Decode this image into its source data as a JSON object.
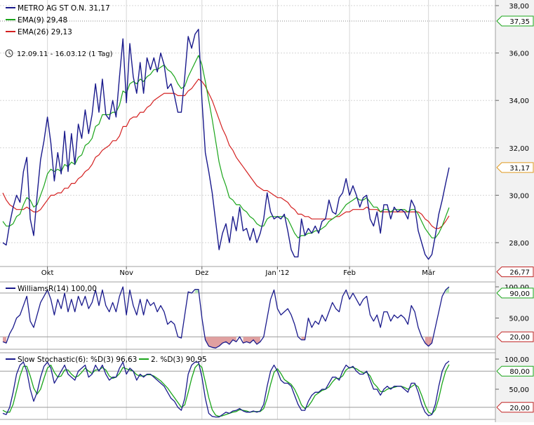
{
  "colors": {
    "price": "#1a1a8c",
    "ema9": "#1aa51a",
    "ema26": "#d42020",
    "stoch_d2": "#1aa51a",
    "grid": "#d6d6d6",
    "axis_bg": "#f2f2f2",
    "overbought_fill": "#b8e8b8",
    "oversold_fill": "#e0a0a0"
  },
  "x_labels": [
    "Okt",
    "Nov",
    "Dez",
    "Jan '12",
    "Feb",
    "Mär"
  ],
  "chart_data": [
    {
      "type": "line",
      "legend": {
        "price": "METRO AG ST O.N. 31,17",
        "ema9": "EMA(9) 29,48",
        "ema26": "EMA(26) 29,13"
      },
      "date_range": "12.09.11 - 16.03.12 (1 Tag)",
      "y_ticks": [
        "38,00",
        "36,00",
        "34,00",
        "32,00",
        "30,00",
        "28,00"
      ],
      "markers": [
        {
          "text": "37,35",
          "value": 37.35,
          "color": "#1aa51a"
        },
        {
          "text": "31,17",
          "value": 31.17,
          "color": "#e09a20"
        },
        {
          "text": "26,77",
          "value": 26.77,
          "color": "#c02020"
        }
      ],
      "ylim": [
        26.77,
        38.0
      ],
      "series": [
        {
          "values": [
            28.0,
            27.9,
            28.8,
            29.5,
            30.0,
            29.7,
            31.0,
            31.6,
            29.0,
            28.3,
            30.0,
            31.5,
            32.3,
            33.3,
            32.2,
            30.6,
            31.8,
            30.9,
            32.7,
            31.0,
            32.6,
            31.3,
            33.0,
            32.4,
            33.6,
            32.6,
            33.4,
            34.7,
            33.5,
            34.9,
            33.4,
            33.2,
            34.0,
            33.3,
            35.0,
            36.6,
            33.9,
            36.4,
            35.0,
            34.3,
            35.6,
            34.3,
            35.8,
            35.3,
            35.8,
            35.2,
            36.0,
            35.5,
            34.5,
            34.7,
            34.2,
            33.5,
            33.5,
            35.0,
            36.7,
            36.2,
            36.8,
            37.0,
            34.0,
            31.8,
            31.0,
            30.1,
            28.9,
            27.7,
            28.4,
            28.8,
            28.0,
            29.1,
            28.5,
            29.5,
            28.5,
            28.6,
            28.1,
            28.6,
            28.0,
            28.4,
            29.0,
            30.1,
            29.3,
            29.0,
            29.1,
            29.0,
            29.2,
            28.5,
            27.7,
            27.4,
            27.4,
            29.0,
            28.3,
            28.6,
            28.4,
            28.7,
            28.4,
            28.9,
            29.0,
            29.8,
            29.3,
            29.2,
            29.9,
            30.1,
            30.7,
            30.0,
            30.4,
            30.0,
            29.5,
            29.9,
            30.0,
            29.0,
            28.7,
            29.3,
            28.4,
            29.6,
            29.6,
            29.0,
            29.5,
            29.3,
            29.4,
            29.3,
            29.0,
            29.8,
            29.5,
            28.5,
            28.0,
            27.5,
            27.3,
            27.5,
            28.3,
            29.2,
            29.8,
            30.5,
            31.17
          ]
        },
        {
          "values": [
            28.9,
            28.7,
            28.7,
            28.8,
            29.1,
            29.2,
            29.6,
            29.9,
            29.8,
            29.5,
            29.6,
            30.0,
            30.4,
            30.9,
            31.1,
            31.0,
            31.1,
            31.0,
            31.3,
            31.2,
            31.4,
            31.3,
            31.6,
            31.7,
            32.1,
            32.2,
            32.4,
            32.9,
            33.0,
            33.4,
            33.4,
            33.4,
            33.5,
            33.5,
            33.8,
            34.4,
            34.3,
            34.7,
            34.8,
            34.7,
            34.9,
            34.8,
            35.0,
            35.1,
            35.3,
            35.3,
            35.4,
            35.5,
            35.3,
            35.2,
            35.0,
            34.7,
            34.5,
            34.6,
            35.0,
            35.3,
            35.6,
            35.9,
            35.5,
            34.8,
            34.0,
            33.2,
            32.3,
            31.4,
            30.8,
            30.4,
            29.9,
            29.8,
            29.6,
            29.6,
            29.4,
            29.3,
            29.1,
            29.0,
            28.8,
            28.7,
            28.7,
            29.0,
            29.1,
            29.1,
            29.1,
            29.1,
            29.1,
            29.0,
            28.7,
            28.4,
            28.2,
            28.3,
            28.3,
            28.4,
            28.4,
            28.5,
            28.5,
            28.6,
            28.7,
            28.9,
            29.0,
            29.1,
            29.2,
            29.4,
            29.6,
            29.7,
            29.8,
            29.9,
            29.8,
            29.8,
            29.9,
            29.7,
            29.5,
            29.5,
            29.3,
            29.4,
            29.4,
            29.3,
            29.4,
            29.4,
            29.4,
            29.4,
            29.3,
            29.4,
            29.4,
            29.2,
            28.9,
            28.6,
            28.4,
            28.2,
            28.2,
            28.4,
            28.7,
            29.1,
            29.48
          ]
        },
        {
          "values": [
            30.1,
            29.8,
            29.6,
            29.5,
            29.4,
            29.4,
            29.4,
            29.5,
            29.4,
            29.3,
            29.3,
            29.4,
            29.6,
            29.8,
            30.0,
            30.0,
            30.1,
            30.1,
            30.3,
            30.3,
            30.5,
            30.5,
            30.7,
            30.8,
            31.0,
            31.1,
            31.3,
            31.6,
            31.7,
            31.9,
            32.0,
            32.1,
            32.3,
            32.3,
            32.5,
            32.9,
            32.9,
            33.2,
            33.3,
            33.3,
            33.5,
            33.5,
            33.7,
            33.8,
            34.0,
            34.1,
            34.2,
            34.3,
            34.3,
            34.3,
            34.3,
            34.2,
            34.2,
            34.2,
            34.4,
            34.5,
            34.7,
            34.9,
            34.8,
            34.6,
            34.3,
            34.0,
            33.6,
            33.2,
            32.8,
            32.5,
            32.1,
            31.9,
            31.6,
            31.4,
            31.2,
            31.0,
            30.8,
            30.6,
            30.4,
            30.3,
            30.2,
            30.2,
            30.1,
            30.0,
            29.9,
            29.9,
            29.8,
            29.7,
            29.5,
            29.4,
            29.2,
            29.2,
            29.1,
            29.1,
            29.0,
            29.0,
            29.0,
            29.0,
            29.0,
            29.0,
            29.0,
            29.1,
            29.1,
            29.2,
            29.3,
            29.3,
            29.4,
            29.4,
            29.4,
            29.4,
            29.5,
            29.4,
            29.4,
            29.4,
            29.3,
            29.3,
            29.3,
            29.3,
            29.3,
            29.3,
            29.3,
            29.3,
            29.3,
            29.3,
            29.3,
            29.3,
            29.2,
            29.0,
            28.9,
            28.7,
            28.6,
            28.6,
            28.7,
            28.9,
            29.13
          ]
        }
      ]
    },
    {
      "type": "line",
      "legend": "WilliamsR(14) 100,00",
      "y_ticks": [
        "100,00",
        "50,00"
      ],
      "markers": [
        {
          "text": "90,00",
          "value": 90,
          "color": "#1aa51a"
        },
        {
          "text": "20,00",
          "value": 20,
          "color": "#c02020"
        }
      ],
      "ylim": [
        0,
        100
      ],
      "series": [
        {
          "values": [
            12,
            10,
            25,
            35,
            50,
            55,
            70,
            85,
            45,
            35,
            55,
            75,
            85,
            95,
            80,
            55,
            80,
            65,
            90,
            60,
            80,
            60,
            85,
            70,
            85,
            65,
            75,
            95,
            70,
            95,
            70,
            60,
            75,
            60,
            85,
            100,
            55,
            95,
            70,
            55,
            80,
            55,
            80,
            70,
            75,
            60,
            70,
            60,
            40,
            45,
            40,
            20,
            18,
            55,
            92,
            90,
            96,
            96,
            50,
            15,
            5,
            3,
            2,
            5,
            10,
            12,
            8,
            15,
            12,
            20,
            10,
            12,
            10,
            15,
            8,
            12,
            20,
            50,
            80,
            95,
            65,
            55,
            60,
            65,
            55,
            40,
            20,
            15,
            15,
            50,
            35,
            45,
            40,
            55,
            45,
            60,
            75,
            65,
            60,
            85,
            95,
            80,
            90,
            80,
            70,
            80,
            85,
            55,
            45,
            55,
            35,
            60,
            60,
            45,
            55,
            50,
            55,
            50,
            40,
            70,
            60,
            35,
            20,
            10,
            5,
            10,
            35,
            60,
            85,
            95,
            100
          ]
        }
      ]
    },
    {
      "type": "line",
      "legend": {
        "d1": "Slow Stochastic(6): %D(3) 96,63",
        "d2": "2. %D(3) 90,95"
      },
      "y_ticks": [
        "100,00",
        "50,00"
      ],
      "markers": [
        {
          "text": "80,00",
          "value": 80,
          "color": "#1aa51a"
        },
        {
          "text": "20,00",
          "value": 20,
          "color": "#c02020"
        }
      ],
      "ylim": [
        0,
        100
      ],
      "series": [
        {
          "values": [
            10,
            8,
            20,
            45,
            75,
            90,
            95,
            80,
            50,
            30,
            45,
            70,
            88,
            95,
            85,
            60,
            70,
            80,
            90,
            75,
            70,
            65,
            80,
            85,
            90,
            70,
            75,
            90,
            80,
            90,
            75,
            65,
            70,
            70,
            85,
            95,
            75,
            85,
            80,
            65,
            75,
            70,
            75,
            75,
            70,
            65,
            60,
            55,
            45,
            35,
            30,
            20,
            15,
            35,
            75,
            90,
            95,
            95,
            70,
            35,
            10,
            5,
            4,
            4,
            8,
            12,
            10,
            14,
            15,
            18,
            14,
            12,
            12,
            14,
            12,
            14,
            25,
            55,
            80,
            90,
            80,
            65,
            60,
            60,
            55,
            40,
            25,
            15,
            15,
            30,
            40,
            45,
            45,
            50,
            50,
            60,
            70,
            70,
            65,
            80,
            90,
            85,
            88,
            80,
            75,
            75,
            80,
            65,
            50,
            50,
            40,
            50,
            55,
            50,
            55,
            55,
            55,
            50,
            45,
            60,
            60,
            45,
            25,
            12,
            6,
            8,
            25,
            55,
            80,
            92,
            96.63
          ]
        },
        {
          "values": [
            15,
            12,
            12,
            25,
            48,
            72,
            88,
            88,
            72,
            52,
            42,
            50,
            68,
            85,
            90,
            78,
            70,
            72,
            82,
            82,
            75,
            70,
            72,
            78,
            85,
            80,
            76,
            82,
            82,
            86,
            82,
            72,
            68,
            70,
            76,
            86,
            84,
            82,
            80,
            74,
            72,
            72,
            74,
            74,
            72,
            68,
            64,
            58,
            52,
            44,
            36,
            28,
            20,
            24,
            45,
            68,
            86,
            92,
            86,
            62,
            36,
            16,
            7,
            5,
            6,
            8,
            10,
            12,
            13,
            16,
            15,
            14,
            12,
            13,
            13,
            13,
            18,
            35,
            58,
            78,
            84,
            76,
            66,
            62,
            58,
            50,
            38,
            24,
            18,
            22,
            30,
            40,
            44,
            48,
            50,
            54,
            62,
            68,
            68,
            72,
            82,
            86,
            86,
            84,
            80,
            77,
            78,
            72,
            60,
            54,
            46,
            46,
            50,
            52,
            53,
            55,
            55,
            53,
            50,
            54,
            58,
            54,
            40,
            24,
            12,
            9,
            16,
            35,
            60,
            80,
            90.95
          ]
        }
      ]
    }
  ]
}
